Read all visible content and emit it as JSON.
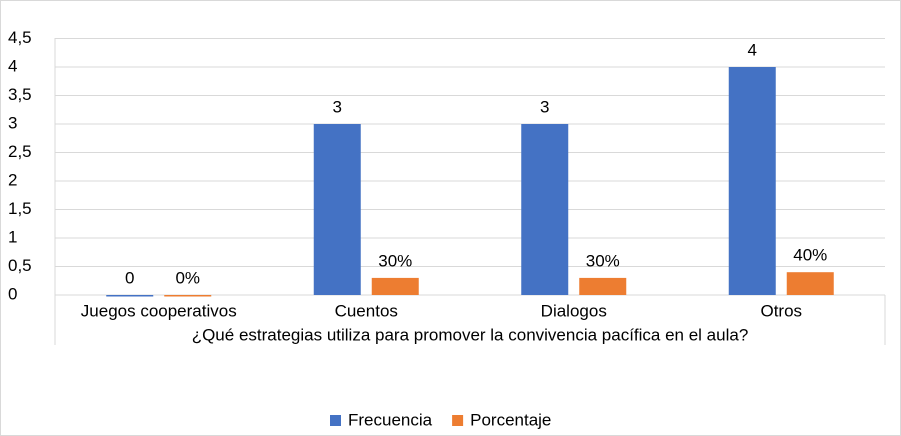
{
  "chart_data": {
    "type": "bar",
    "x_label": "¿Qué estrategias utiliza para promover la convivencia pacífica en el aula?",
    "categories": [
      "Juegos cooperativos",
      "Cuentos",
      "Dialogos",
      "Otros"
    ],
    "series": [
      {
        "name": "Frecuencia",
        "color": "#4472c4",
        "values": [
          0,
          3,
          3,
          4
        ]
      },
      {
        "name": "Porcentaje",
        "color": "#ed7d31",
        "values": [
          0,
          0.3,
          0.3,
          0.4
        ],
        "value_labels": [
          "0%",
          "30%",
          "30%",
          "40%"
        ]
      }
    ],
    "ylim": [
      0,
      4.5
    ],
    "yticks": [
      0,
      {
        "value": 0.5,
        "label": "0,5"
      },
      1,
      {
        "value": 1.5,
        "label": "1,5"
      },
      2,
      {
        "value": 2.5,
        "label": "2,5"
      },
      3,
      {
        "value": 3.5,
        "label": "3,5"
      },
      4,
      {
        "value": 4.5,
        "label": "4,5"
      }
    ],
    "grid": true,
    "legend": "bottom"
  }
}
